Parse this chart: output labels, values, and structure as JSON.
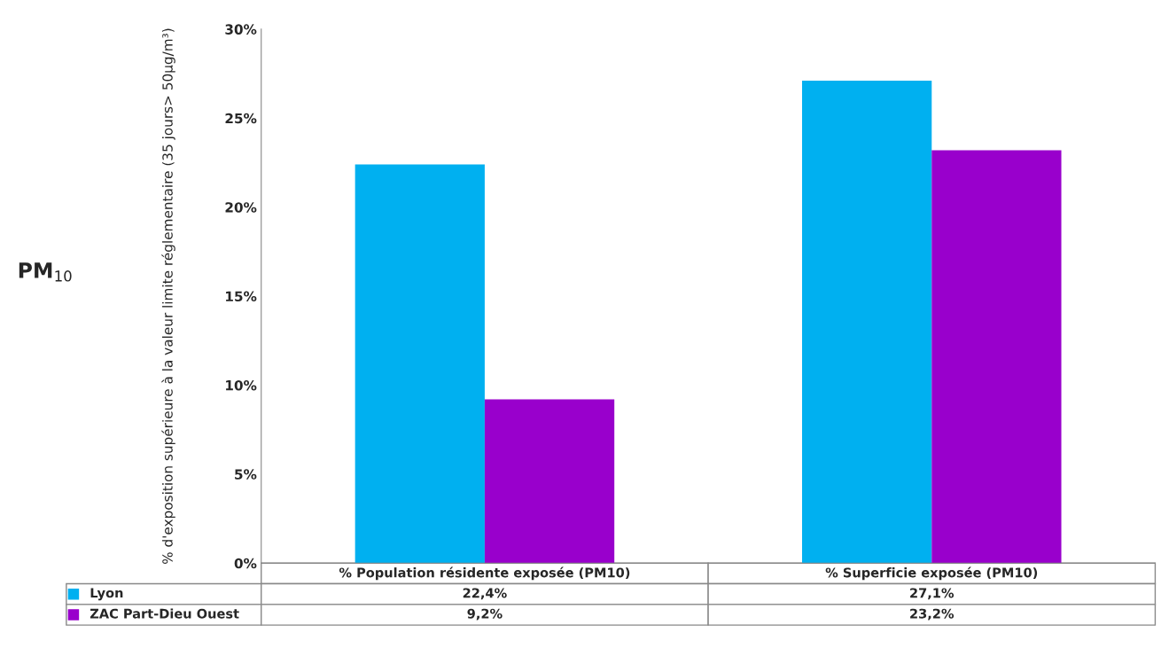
{
  "chart_data": {
    "type": "bar",
    "categories": [
      "% Population résidente exposée (PM10)",
      "% Superficie exposée (PM10)"
    ],
    "series": [
      {
        "name": "Lyon",
        "color": "#00b0f0",
        "values": [
          22.4,
          27.1
        ],
        "value_labels": [
          "22,4%",
          "27,1%"
        ]
      },
      {
        "name": "ZAC Part-Dieu Ouest",
        "color": "#9900cc",
        "values": [
          9.2,
          23.2
        ],
        "value_labels": [
          "9,2%",
          "23,2%"
        ]
      }
    ],
    "ylabel": "% d'exposition supérieure à la valeur limite réglementaire (35 jours> 50µg/m³)",
    "ylim": [
      0,
      30
    ],
    "yticks": [
      {
        "value": 0,
        "label": "0%"
      },
      {
        "value": 5,
        "label": "5%"
      },
      {
        "value": 10,
        "label": "10%"
      },
      {
        "value": 15,
        "label": "15%"
      },
      {
        "value": 20,
        "label": "20%"
      },
      {
        "value": 25,
        "label": "25%"
      },
      {
        "value": 30,
        "label": "30%"
      }
    ],
    "annotations": [
      "PM$_{10}$"
    ],
    "legend": "bottom",
    "grid": false
  }
}
